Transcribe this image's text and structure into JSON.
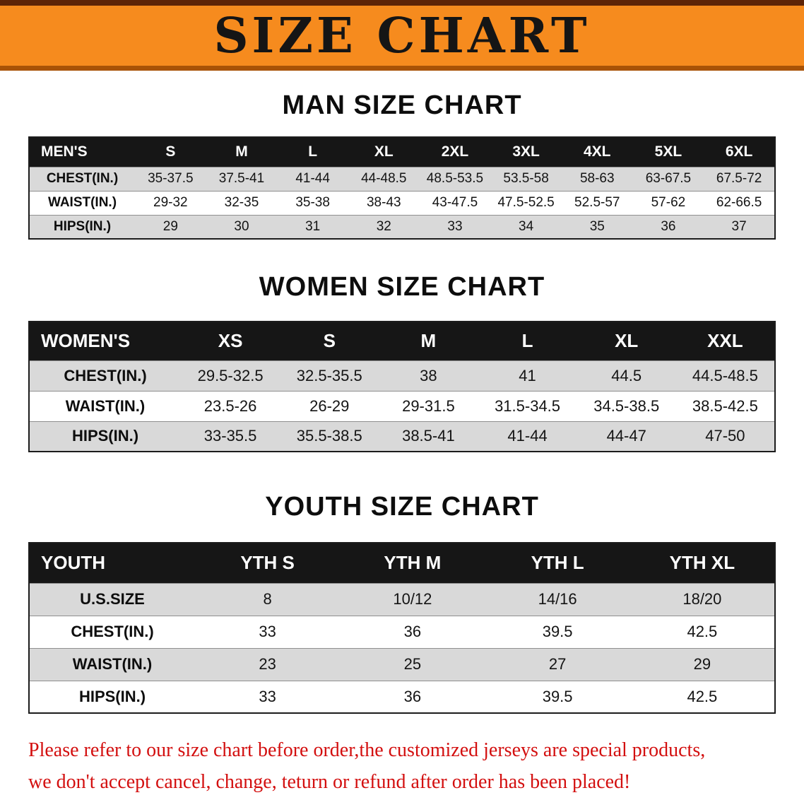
{
  "banner": {
    "title": "SIZE CHART",
    "bg_color": "#f68b1e"
  },
  "sections": [
    {
      "id": "men",
      "heading": "MAN SIZE CHART",
      "table": {
        "header": [
          "MEN'S",
          "S",
          "M",
          "L",
          "XL",
          "2XL",
          "3XL",
          "4XL",
          "5XL",
          "6XL"
        ],
        "rows": [
          {
            "label": "CHEST(IN.)",
            "values": [
              "35-37.5",
              "37.5-41",
              "41-44",
              "44-48.5",
              "48.5-53.5",
              "53.5-58",
              "58-63",
              "63-67.5",
              "67.5-72"
            ]
          },
          {
            "label": "WAIST(IN.)",
            "values": [
              "29-32",
              "32-35",
              "35-38",
              "38-43",
              "43-47.5",
              "47.5-52.5",
              "52.5-57",
              "57-62",
              "62-66.5"
            ]
          },
          {
            "label": "HIPS(IN.)",
            "values": [
              "29",
              "30",
              "31",
              "32",
              "33",
              "34",
              "35",
              "36",
              "37"
            ]
          }
        ]
      }
    },
    {
      "id": "women",
      "heading": "WOMEN SIZE CHART",
      "table": {
        "header": [
          "WOMEN'S",
          "XS",
          "S",
          "M",
          "L",
          "XL",
          "XXL"
        ],
        "rows": [
          {
            "label": "CHEST(IN.)",
            "values": [
              "29.5-32.5",
              "32.5-35.5",
              "38",
              "41",
              "44.5",
              "44.5-48.5"
            ]
          },
          {
            "label": "WAIST(IN.)",
            "values": [
              "23.5-26",
              "26-29",
              "29-31.5",
              "31.5-34.5",
              "34.5-38.5",
              "38.5-42.5"
            ]
          },
          {
            "label": "HIPS(IN.)",
            "values": [
              "33-35.5",
              "35.5-38.5",
              "38.5-41",
              "41-44",
              "44-47",
              "47-50"
            ]
          }
        ]
      }
    },
    {
      "id": "youth",
      "heading": "YOUTH SIZE CHART",
      "table": {
        "header": [
          "YOUTH",
          "YTH S",
          "YTH M",
          "YTH L",
          "YTH XL"
        ],
        "rows": [
          {
            "label": "U.S.SIZE",
            "values": [
              "8",
              "10/12",
              "14/16",
              "18/20"
            ]
          },
          {
            "label": "CHEST(IN.)",
            "values": [
              "33",
              "36",
              "39.5",
              "42.5"
            ]
          },
          {
            "label": "WAIST(IN.)",
            "values": [
              "23",
              "25",
              "27",
              "29"
            ]
          },
          {
            "label": "HIPS(IN.)",
            "values": [
              "33",
              "36",
              "39.5",
              "42.5"
            ]
          }
        ]
      }
    }
  ],
  "disclaimer": {
    "line1": "Please refer to our size chart before order,the customized jerseys are special products,",
    "line2": "we don't accept cancel, change, teturn or refund after order has been placed!",
    "color": "#d30f0f"
  }
}
